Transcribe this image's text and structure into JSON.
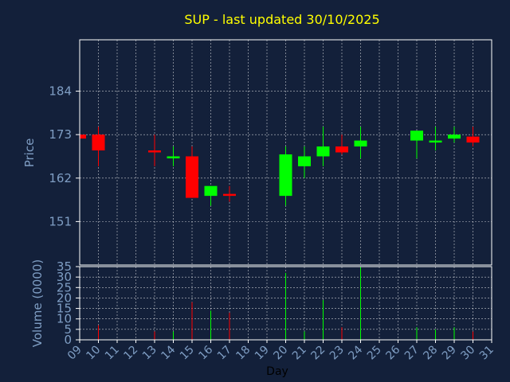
{
  "colors": {
    "background": "#13203a",
    "axis": "#ffffff",
    "grid": "#ffffff",
    "text": "#7f9ec4",
    "title": "#ffff00",
    "up": "#00ff00",
    "down": "#ff0000"
  },
  "chart_data": {
    "type": "candlestick",
    "title": "SUP - last updated 30/10/2025",
    "xlabel": "Day",
    "price_panel": {
      "ylabel": "Price",
      "ylim": [
        140,
        197
      ],
      "yticks": [
        "151",
        "162",
        "173",
        "184"
      ],
      "grid": true
    },
    "volume_panel": {
      "ylabel": "Volume (0000)",
      "ylim": [
        0,
        35
      ],
      "yticks": [
        "0",
        "5",
        "10",
        "15",
        "20",
        "25",
        "30",
        "35"
      ],
      "grid": true
    },
    "x_ticks": [
      "09",
      "10",
      "11",
      "12",
      "13",
      "14",
      "15",
      "16",
      "17",
      "18",
      "19",
      "20",
      "21",
      "22",
      "23",
      "24",
      "25",
      "26",
      "27",
      "28",
      "29",
      "30",
      "31"
    ],
    "candles": [
      {
        "day": 9,
        "open": 173,
        "close": 172,
        "high": 173,
        "low": 172,
        "volume": 0
      },
      {
        "day": 10,
        "open": 173,
        "close": 169,
        "high": 175,
        "low": 165,
        "volume": 7
      },
      {
        "day": 13,
        "open": 169,
        "close": 168.5,
        "high": 173,
        "low": 165,
        "volume": 4
      },
      {
        "day": 14,
        "open": 167,
        "close": 167.5,
        "high": 170,
        "low": 165,
        "volume": 4
      },
      {
        "day": 15,
        "open": 167.5,
        "close": 157,
        "high": 170,
        "low": 157,
        "volume": 18
      },
      {
        "day": 16,
        "open": 157.5,
        "close": 160,
        "high": 160,
        "low": 155,
        "volume": 14
      },
      {
        "day": 17,
        "open": 158,
        "close": 157.5,
        "high": 160,
        "low": 156,
        "volume": 13
      },
      {
        "day": 20,
        "open": 157.5,
        "close": 168,
        "high": 170,
        "low": 155,
        "volume": 32
      },
      {
        "day": 21,
        "open": 165,
        "close": 167.5,
        "high": 170,
        "low": 162,
        "volume": 4
      },
      {
        "day": 22,
        "open": 167.5,
        "close": 170,
        "high": 175,
        "low": 165,
        "volume": 19
      },
      {
        "day": 23,
        "open": 170,
        "close": 168.5,
        "high": 173,
        "low": 168,
        "volume": 6
      },
      {
        "day": 24,
        "open": 170,
        "close": 171.5,
        "high": 175,
        "low": 167,
        "volume": 35
      },
      {
        "day": 27,
        "open": 171.5,
        "close": 174,
        "high": 174,
        "low": 167,
        "volume": 6
      },
      {
        "day": 28,
        "open": 171,
        "close": 171.5,
        "high": 175,
        "low": 169,
        "volume": 5
      },
      {
        "day": 29,
        "open": 172,
        "close": 173,
        "high": 175,
        "low": 171,
        "volume": 6
      },
      {
        "day": 30,
        "open": 172.5,
        "close": 171,
        "high": 175,
        "low": 170,
        "volume": 4
      }
    ]
  }
}
